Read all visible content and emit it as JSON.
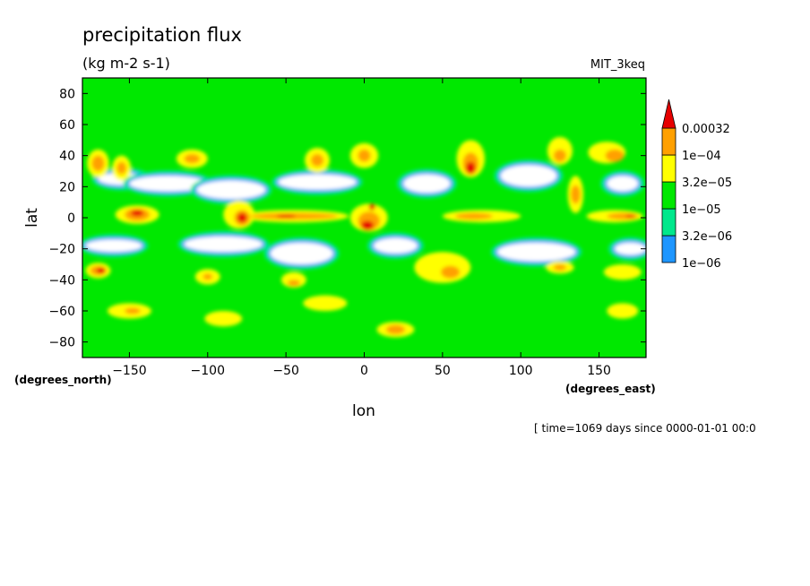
{
  "title": "precipitation flux",
  "units": "(kg m-2 s-1)",
  "dataset": "MIT_3keq",
  "footer": "[ time=1069 days since 0000-01-01 00:0",
  "chart_data": {
    "type": "heatmap",
    "title": "precipitation flux",
    "subtitle": "(kg m-2 s-1)",
    "xlabel": "lon",
    "ylabel": "lat",
    "x_units": "(degrees_east)",
    "y_units": "(degrees_north)",
    "xlim": [
      -180,
      180
    ],
    "ylim": [
      -90,
      90
    ],
    "x_ticks": [
      -150,
      -100,
      -50,
      0,
      50,
      100,
      150
    ],
    "y_ticks": [
      -80,
      -60,
      -40,
      -20,
      0,
      20,
      40,
      60,
      80
    ],
    "grid": false,
    "colorbar": {
      "levels": [
        "1e-06",
        "3.2e-06",
        "1e-05",
        "3.2e-05",
        "1e-04",
        "0.00032"
      ],
      "colors": [
        "#ffffff",
        "#1e96ff",
        "#00e88c",
        "#00e800",
        "#ffff00",
        "#ffa000",
        "#e60000"
      ],
      "extend": "max"
    },
    "regions": [
      {
        "level": 3,
        "lon": -170,
        "lat": 35,
        "rlon": 7,
        "rlat": 9
      },
      {
        "level": 4,
        "lon": -170,
        "lat": 35,
        "rlon": 4,
        "rlat": 5
      },
      {
        "level": 3,
        "lon": -155,
        "lat": 32,
        "rlon": 6,
        "rlat": 8
      },
      {
        "level": 4,
        "lon": -155,
        "lat": 32,
        "rlon": 3,
        "rlat": 4
      },
      {
        "level": 3,
        "lon": -110,
        "lat": 38,
        "rlon": 10,
        "rlat": 6
      },
      {
        "level": 4,
        "lon": -110,
        "lat": 38,
        "rlon": 5,
        "rlat": 3
      },
      {
        "level": 3,
        "lon": -30,
        "lat": 37,
        "rlon": 8,
        "rlat": 8
      },
      {
        "level": 4,
        "lon": -30,
        "lat": 37,
        "rlon": 4,
        "rlat": 4
      },
      {
        "level": 3,
        "lon": 0,
        "lat": 40,
        "rlon": 9,
        "rlat": 8
      },
      {
        "level": 4,
        "lon": 0,
        "lat": 40,
        "rlon": 4,
        "rlat": 4
      },
      {
        "level": 3,
        "lon": 68,
        "lat": 38,
        "rlon": 9,
        "rlat": 12
      },
      {
        "level": 4,
        "lon": 68,
        "lat": 35,
        "rlon": 5,
        "rlat": 7
      },
      {
        "level": 5,
        "lon": 68,
        "lat": 32,
        "rlon": 3,
        "rlat": 4
      },
      {
        "level": 3,
        "lon": 125,
        "lat": 43,
        "rlon": 8,
        "rlat": 9
      },
      {
        "level": 4,
        "lon": 125,
        "lat": 40,
        "rlon": 4,
        "rlat": 4
      },
      {
        "level": 3,
        "lon": 155,
        "lat": 42,
        "rlon": 12,
        "rlat": 7
      },
      {
        "level": 4,
        "lon": 160,
        "lat": 40,
        "rlon": 6,
        "rlat": 4
      },
      {
        "level": 3,
        "lon": 135,
        "lat": 15,
        "rlon": 5,
        "rlat": 12
      },
      {
        "level": 4,
        "lon": 135,
        "lat": 15,
        "rlon": 3,
        "rlat": 6
      },
      {
        "level": 3,
        "lon": -145,
        "lat": 2,
        "rlon": 14,
        "rlat": 6
      },
      {
        "level": 4,
        "lon": -145,
        "lat": 2,
        "rlon": 8,
        "rlat": 4
      },
      {
        "level": 5,
        "lon": -145,
        "lat": 3,
        "rlon": 4,
        "rlat": 2
      },
      {
        "level": 3,
        "lon": -80,
        "lat": 2,
        "rlon": 10,
        "rlat": 9
      },
      {
        "level": 4,
        "lon": -78,
        "lat": 0,
        "rlon": 5,
        "rlat": 5
      },
      {
        "level": 5,
        "lon": -78,
        "lat": 0,
        "rlon": 3,
        "rlat": 3
      },
      {
        "level": 3,
        "lon": -45,
        "lat": 1,
        "rlon": 35,
        "rlat": 4
      },
      {
        "level": 4,
        "lon": -45,
        "lat": 1,
        "rlon": 28,
        "rlat": 2
      },
      {
        "level": 5,
        "lon": -50,
        "lat": 1,
        "rlon": 6,
        "rlat": 1
      },
      {
        "level": 3,
        "lon": 3,
        "lat": 0,
        "rlon": 12,
        "rlat": 9
      },
      {
        "level": 4,
        "lon": 3,
        "lat": -2,
        "rlon": 7,
        "rlat": 6
      },
      {
        "level": 5,
        "lon": 2,
        "lat": -5,
        "rlon": 4,
        "rlat": 3
      },
      {
        "level": 5,
        "lon": 5,
        "lat": 7,
        "rlon": 2,
        "rlat": 2
      },
      {
        "level": 3,
        "lon": 75,
        "lat": 1,
        "rlon": 25,
        "rlat": 4
      },
      {
        "level": 4,
        "lon": 70,
        "lat": 1,
        "rlon": 12,
        "rlat": 2
      },
      {
        "level": 3,
        "lon": 160,
        "lat": 1,
        "rlon": 18,
        "rlat": 4
      },
      {
        "level": 4,
        "lon": 165,
        "lat": 1,
        "rlon": 10,
        "rlat": 2
      },
      {
        "level": 5,
        "lon": 170,
        "lat": 1,
        "rlon": 3,
        "rlat": 1
      },
      {
        "level": 3,
        "lon": 50,
        "lat": -32,
        "rlon": 18,
        "rlat": 10
      },
      {
        "level": 4,
        "lon": 55,
        "lat": -35,
        "rlon": 6,
        "rlat": 4
      },
      {
        "level": 3,
        "lon": -170,
        "lat": -34,
        "rlon": 8,
        "rlat": 5
      },
      {
        "level": 4,
        "lon": -170,
        "lat": -34,
        "rlon": 5,
        "rlat": 3
      },
      {
        "level": 5,
        "lon": -168,
        "lat": -34,
        "rlon": 3,
        "rlat": 2
      },
      {
        "level": 3,
        "lon": -100,
        "lat": -38,
        "rlon": 8,
        "rlat": 5
      },
      {
        "level": 4,
        "lon": -100,
        "lat": -38,
        "rlon": 3,
        "rlat": 2
      },
      {
        "level": 3,
        "lon": -45,
        "lat": -40,
        "rlon": 8,
        "rlat": 5
      },
      {
        "level": 4,
        "lon": -45,
        "lat": -42,
        "rlon": 4,
        "rlat": 2
      },
      {
        "level": 3,
        "lon": 125,
        "lat": -32,
        "rlon": 9,
        "rlat": 4
      },
      {
        "level": 4,
        "lon": 125,
        "lat": -32,
        "rlon": 4,
        "rlat": 2
      },
      {
        "level": 3,
        "lon": 165,
        "lat": -35,
        "rlon": 12,
        "rlat": 5
      },
      {
        "level": 3,
        "lon": -150,
        "lat": -60,
        "rlon": 14,
        "rlat": 5
      },
      {
        "level": 4,
        "lon": -148,
        "lat": -60,
        "rlon": 5,
        "rlat": 2
      },
      {
        "level": 3,
        "lon": -90,
        "lat": -65,
        "rlon": 12,
        "rlat": 5
      },
      {
        "level": 3,
        "lon": -25,
        "lat": -55,
        "rlon": 14,
        "rlat": 5
      },
      {
        "level": 3,
        "lon": 20,
        "lat": -72,
        "rlon": 12,
        "rlat": 5
      },
      {
        "level": 4,
        "lon": 20,
        "lat": -72,
        "rlon": 6,
        "rlat": 3
      },
      {
        "level": 3,
        "lon": 165,
        "lat": -60,
        "rlon": 10,
        "rlat": 5
      },
      {
        "level": 0,
        "lon": -155,
        "lat": 25,
        "rlon": 15,
        "rlat": 4
      },
      {
        "level": 0,
        "lon": -125,
        "lat": 22,
        "rlon": 25,
        "rlat": 5
      },
      {
        "level": 0,
        "lon": -85,
        "lat": 18,
        "rlon": 22,
        "rlat": 6
      },
      {
        "level": 0,
        "lon": -30,
        "lat": 23,
        "rlon": 25,
        "rlat": 5
      },
      {
        "level": 0,
        "lon": 40,
        "lat": 22,
        "rlon": 15,
        "rlat": 6
      },
      {
        "level": 0,
        "lon": 105,
        "lat": 27,
        "rlon": 18,
        "rlat": 7
      },
      {
        "level": 0,
        "lon": 165,
        "lat": 22,
        "rlon": 10,
        "rlat": 5
      },
      {
        "level": 0,
        "lon": -160,
        "lat": -18,
        "rlon": 18,
        "rlat": 4
      },
      {
        "level": 0,
        "lon": -90,
        "lat": -17,
        "rlon": 25,
        "rlat": 5
      },
      {
        "level": 0,
        "lon": -40,
        "lat": -23,
        "rlon": 20,
        "rlat": 7
      },
      {
        "level": 0,
        "lon": 20,
        "lat": -18,
        "rlon": 14,
        "rlat": 5
      },
      {
        "level": 0,
        "lon": 110,
        "lat": -22,
        "rlon": 25,
        "rlat": 6
      },
      {
        "level": 0,
        "lon": 170,
        "lat": -20,
        "rlon": 10,
        "rlat": 4
      }
    ]
  }
}
